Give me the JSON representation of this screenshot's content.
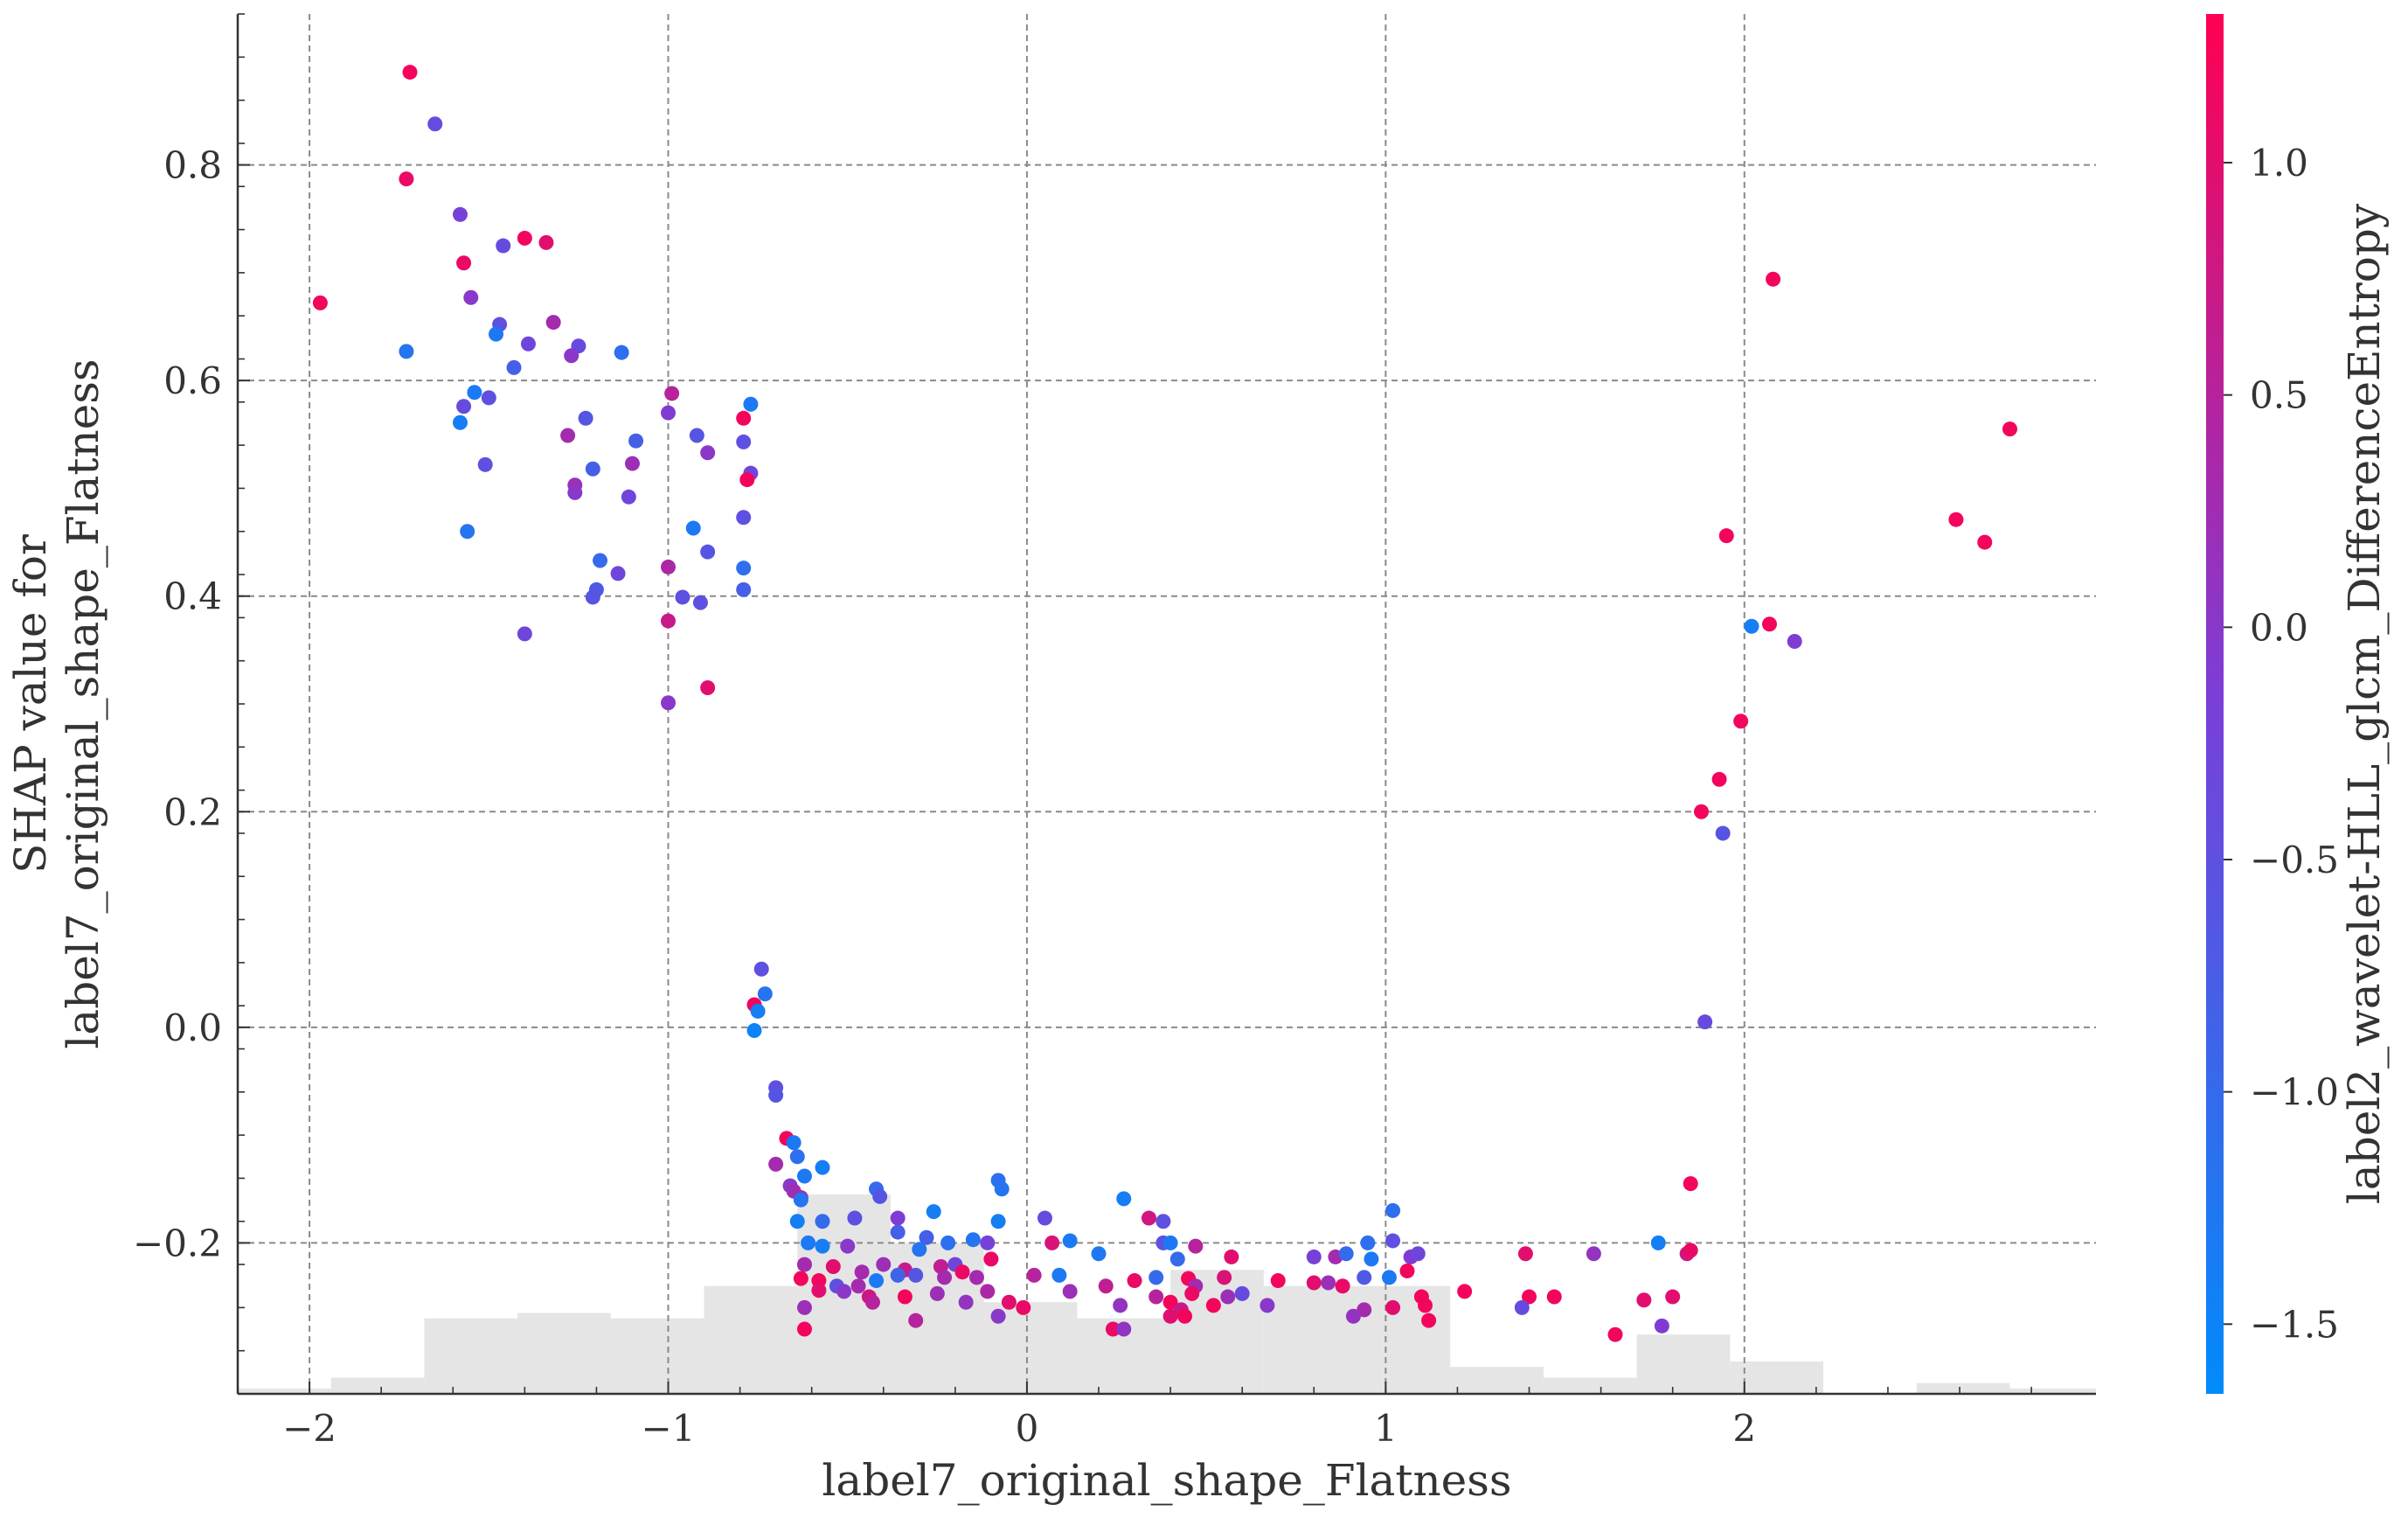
{
  "chart_data": {
    "type": "scatter",
    "xlabel": "label7_original_shape_Flatness",
    "ylabel_lines": [
      "SHAP value for",
      "label7_original_shape_Flatness"
    ],
    "colorbar_label": "label2_wavelet-HLL_glcm_DifferenceEntropy",
    "xlim": [
      -2.2,
      2.98
    ],
    "ylim": [
      -0.34,
      0.94
    ],
    "x_ticks": [
      -2,
      -1,
      0,
      1,
      2
    ],
    "x_tick_labels": [
      "−2",
      "−1",
      "0",
      "1",
      "2"
    ],
    "y_ticks": [
      -0.2,
      0.0,
      0.2,
      0.4,
      0.6,
      0.8
    ],
    "y_tick_labels": [
      "−0.2",
      "0.0",
      "0.2",
      "0.4",
      "0.6",
      "0.8"
    ],
    "colorbar_range": [
      -1.65,
      1.32
    ],
    "colorbar_ticks": [
      -1.5,
      -1.0,
      -0.5,
      0.0,
      0.5,
      1.0
    ],
    "colorbar_tick_labels": [
      "−1.5",
      "−1.0",
      "−0.5",
      "0.0",
      "0.5",
      "1.0"
    ],
    "colormap": [
      "#008bfb",
      "#7a3fd8",
      "#ff0052"
    ],
    "grid": true,
    "histogram": {
      "color": "#e5e5e5",
      "bins": [
        {
          "x0": -2.2,
          "x1": -1.94,
          "h": 0.005
        },
        {
          "x0": -1.94,
          "x1": -1.68,
          "h": 0.015
        },
        {
          "x0": -1.68,
          "x1": -1.42,
          "h": 0.07
        },
        {
          "x0": -1.42,
          "x1": -1.16,
          "h": 0.075
        },
        {
          "x0": -1.16,
          "x1": -0.9,
          "h": 0.07
        },
        {
          "x0": -0.9,
          "x1": -0.64,
          "h": 0.1
        },
        {
          "x0": -0.64,
          "x1": -0.38,
          "h": 0.185
        },
        {
          "x0": -0.38,
          "x1": -0.12,
          "h": 0.14
        },
        {
          "x0": -0.12,
          "x1": 0.14,
          "h": 0.085
        },
        {
          "x0": 0.14,
          "x1": 0.4,
          "h": 0.07
        },
        {
          "x0": 0.4,
          "x1": 0.66,
          "h": 0.115
        },
        {
          "x0": 0.66,
          "x1": 0.92,
          "h": 0.1
        },
        {
          "x0": 0.92,
          "x1": 1.18,
          "h": 0.1
        },
        {
          "x0": 1.18,
          "x1": 1.44,
          "h": 0.025
        },
        {
          "x0": 1.44,
          "x1": 1.7,
          "h": 0.015
        },
        {
          "x0": 1.7,
          "x1": 1.96,
          "h": 0.055
        },
        {
          "x0": 1.96,
          "x1": 2.22,
          "h": 0.03
        },
        {
          "x0": 2.22,
          "x1": 2.48,
          "h": 0.0
        },
        {
          "x0": 2.48,
          "x1": 2.74,
          "h": 0.01
        },
        {
          "x0": 2.74,
          "x1": 2.98,
          "h": 0.005
        }
      ]
    },
    "points": [
      {
        "x": -1.97,
        "y": 0.672,
        "c": 1.2
      },
      {
        "x": -1.72,
        "y": 0.886,
        "c": 1.2
      },
      {
        "x": -1.73,
        "y": 0.787,
        "c": 1.1
      },
      {
        "x": -1.65,
        "y": 0.838,
        "c": -0.4
      },
      {
        "x": -1.73,
        "y": 0.627,
        "c": -1.2
      },
      {
        "x": -1.58,
        "y": 0.754,
        "c": -0.2
      },
      {
        "x": -1.57,
        "y": 0.709,
        "c": 1.1
      },
      {
        "x": -1.55,
        "y": 0.677,
        "c": 0.0
      },
      {
        "x": -1.46,
        "y": 0.725,
        "c": -0.4
      },
      {
        "x": -1.4,
        "y": 0.732,
        "c": 1.2
      },
      {
        "x": -1.34,
        "y": 0.728,
        "c": 1.0
      },
      {
        "x": -1.32,
        "y": 0.654,
        "c": 0.3
      },
      {
        "x": -1.47,
        "y": 0.652,
        "c": -0.5
      },
      {
        "x": -1.48,
        "y": 0.643,
        "c": -1.3
      },
      {
        "x": -1.39,
        "y": 0.634,
        "c": -0.3
      },
      {
        "x": -1.25,
        "y": 0.632,
        "c": -0.4
      },
      {
        "x": -1.27,
        "y": 0.623,
        "c": 0.0
      },
      {
        "x": -1.13,
        "y": 0.626,
        "c": -1.1
      },
      {
        "x": -1.43,
        "y": 0.612,
        "c": -0.8
      },
      {
        "x": -1.54,
        "y": 0.589,
        "c": -1.3
      },
      {
        "x": -1.5,
        "y": 0.584,
        "c": -0.5
      },
      {
        "x": -1.57,
        "y": 0.576,
        "c": -0.4
      },
      {
        "x": -1.58,
        "y": 0.561,
        "c": -1.4
      },
      {
        "x": -1.51,
        "y": 0.522,
        "c": -0.5
      },
      {
        "x": -1.56,
        "y": 0.46,
        "c": -1.2
      },
      {
        "x": -1.23,
        "y": 0.565,
        "c": -0.6
      },
      {
        "x": -1.28,
        "y": 0.549,
        "c": 0.3
      },
      {
        "x": -1.09,
        "y": 0.544,
        "c": -0.8
      },
      {
        "x": -1.1,
        "y": 0.523,
        "c": 0.2
      },
      {
        "x": -1.21,
        "y": 0.518,
        "c": -0.8
      },
      {
        "x": -1.26,
        "y": 0.503,
        "c": 0.2
      },
      {
        "x": -1.26,
        "y": 0.496,
        "c": 0.0
      },
      {
        "x": -1.11,
        "y": 0.492,
        "c": -0.3
      },
      {
        "x": -1.19,
        "y": 0.433,
        "c": -1.0
      },
      {
        "x": -1.14,
        "y": 0.421,
        "c": -0.3
      },
      {
        "x": -1.2,
        "y": 0.406,
        "c": -0.7
      },
      {
        "x": -1.21,
        "y": 0.399,
        "c": -0.6
      },
      {
        "x": -1.4,
        "y": 0.365,
        "c": -0.3
      },
      {
        "x": -0.99,
        "y": 0.588,
        "c": 0.5
      },
      {
        "x": -1.0,
        "y": 0.57,
        "c": -0.1
      },
      {
        "x": -0.92,
        "y": 0.549,
        "c": -0.6
      },
      {
        "x": -0.89,
        "y": 0.533,
        "c": 0.0
      },
      {
        "x": -0.79,
        "y": 0.565,
        "c": 1.2
      },
      {
        "x": -0.77,
        "y": 0.578,
        "c": -1.3
      },
      {
        "x": -0.79,
        "y": 0.543,
        "c": -0.5
      },
      {
        "x": -0.77,
        "y": 0.514,
        "c": -0.3
      },
      {
        "x": -0.78,
        "y": 0.508,
        "c": 1.2
      },
      {
        "x": -0.79,
        "y": 0.473,
        "c": -0.5
      },
      {
        "x": -0.93,
        "y": 0.463,
        "c": -1.3
      },
      {
        "x": -0.89,
        "y": 0.441,
        "c": -0.6
      },
      {
        "x": -1.0,
        "y": 0.427,
        "c": 0.4
      },
      {
        "x": -0.79,
        "y": 0.426,
        "c": -1.1
      },
      {
        "x": -0.79,
        "y": 0.406,
        "c": -0.8
      },
      {
        "x": -0.96,
        "y": 0.399,
        "c": -0.5
      },
      {
        "x": -0.91,
        "y": 0.394,
        "c": -0.5
      },
      {
        "x": -1.0,
        "y": 0.377,
        "c": 0.7
      },
      {
        "x": -0.89,
        "y": 0.315,
        "c": 1.0
      },
      {
        "x": -1.0,
        "y": 0.301,
        "c": 0.0
      },
      {
        "x": -0.74,
        "y": 0.054,
        "c": -0.5
      },
      {
        "x": -0.73,
        "y": 0.031,
        "c": -1.2
      },
      {
        "x": -0.76,
        "y": 0.021,
        "c": 1.2
      },
      {
        "x": -0.75,
        "y": 0.015,
        "c": -1.4
      },
      {
        "x": -0.76,
        "y": -0.003,
        "c": -1.5
      },
      {
        "x": -0.7,
        "y": -0.056,
        "c": -0.5
      },
      {
        "x": -0.7,
        "y": -0.063,
        "c": -0.6
      },
      {
        "x": -0.67,
        "y": -0.103,
        "c": 1.2
      },
      {
        "x": -0.65,
        "y": -0.107,
        "c": -1.3
      },
      {
        "x": -0.64,
        "y": -0.12,
        "c": -1.1
      },
      {
        "x": -0.7,
        "y": -0.127,
        "c": 0.3
      },
      {
        "x": -0.57,
        "y": -0.13,
        "c": -1.4
      },
      {
        "x": -0.62,
        "y": -0.138,
        "c": -1.3
      },
      {
        "x": -0.66,
        "y": -0.147,
        "c": 0.0
      },
      {
        "x": -0.65,
        "y": -0.152,
        "c": 0.2
      },
      {
        "x": -0.63,
        "y": -0.158,
        "c": 0.4
      },
      {
        "x": -0.63,
        "y": -0.16,
        "c": -1.2
      },
      {
        "x": -0.42,
        "y": -0.15,
        "c": -1.0
      },
      {
        "x": -0.41,
        "y": -0.157,
        "c": -0.6
      },
      {
        "x": -0.08,
        "y": -0.142,
        "c": -1.1
      },
      {
        "x": -0.07,
        "y": -0.15,
        "c": -1.2
      },
      {
        "x": 0.27,
        "y": -0.159,
        "c": -1.4
      },
      {
        "x": -0.64,
        "y": -0.18,
        "c": -1.4
      },
      {
        "x": -0.57,
        "y": -0.18,
        "c": -1.0
      },
      {
        "x": -0.48,
        "y": -0.177,
        "c": -0.5
      },
      {
        "x": -0.36,
        "y": -0.177,
        "c": -0.1
      },
      {
        "x": -0.26,
        "y": -0.171,
        "c": -1.4
      },
      {
        "x": -0.08,
        "y": -0.18,
        "c": -1.4
      },
      {
        "x": 0.05,
        "y": -0.177,
        "c": -0.4
      },
      {
        "x": 0.34,
        "y": -0.177,
        "c": 0.8
      },
      {
        "x": 0.38,
        "y": -0.18,
        "c": -0.5
      },
      {
        "x": 1.02,
        "y": -0.17,
        "c": -1.1
      },
      {
        "x": -0.61,
        "y": -0.2,
        "c": -1.3
      },
      {
        "x": -0.57,
        "y": -0.203,
        "c": -1.4
      },
      {
        "x": -0.5,
        "y": -0.203,
        "c": 0.0
      },
      {
        "x": -0.36,
        "y": -0.19,
        "c": -0.8
      },
      {
        "x": -0.28,
        "y": -0.195,
        "c": -0.8
      },
      {
        "x": -0.3,
        "y": -0.206,
        "c": -1.2
      },
      {
        "x": -0.22,
        "y": -0.2,
        "c": -1.1
      },
      {
        "x": -0.15,
        "y": -0.197,
        "c": -1.2
      },
      {
        "x": -0.11,
        "y": -0.2,
        "c": -0.2
      },
      {
        "x": 0.07,
        "y": -0.2,
        "c": 0.9
      },
      {
        "x": 0.12,
        "y": -0.198,
        "c": -1.3
      },
      {
        "x": 0.38,
        "y": -0.2,
        "c": -0.5
      },
      {
        "x": 0.4,
        "y": -0.2,
        "c": -1.3
      },
      {
        "x": 0.47,
        "y": -0.203,
        "c": 0.5
      },
      {
        "x": 0.95,
        "y": -0.2,
        "c": -1.1
      },
      {
        "x": 1.02,
        "y": -0.198,
        "c": -0.5
      },
      {
        "x": 1.76,
        "y": -0.2,
        "c": -1.4
      },
      {
        "x": -0.62,
        "y": -0.22,
        "c": 0.3
      },
      {
        "x": -0.54,
        "y": -0.222,
        "c": 1.0
      },
      {
        "x": -0.46,
        "y": -0.227,
        "c": 0.3
      },
      {
        "x": -0.4,
        "y": -0.22,
        "c": 0.2
      },
      {
        "x": -0.34,
        "y": -0.225,
        "c": 0.7
      },
      {
        "x": -0.24,
        "y": -0.222,
        "c": 0.6
      },
      {
        "x": -0.2,
        "y": -0.22,
        "c": -0.3
      },
      {
        "x": -0.1,
        "y": -0.215,
        "c": 1.1
      },
      {
        "x": 0.2,
        "y": -0.21,
        "c": -1.3
      },
      {
        "x": 0.42,
        "y": -0.215,
        "c": -1.0
      },
      {
        "x": 0.57,
        "y": -0.213,
        "c": 1.0
      },
      {
        "x": 0.8,
        "y": -0.213,
        "c": -0.2
      },
      {
        "x": 0.86,
        "y": -0.213,
        "c": 0.3
      },
      {
        "x": 0.89,
        "y": -0.21,
        "c": -1.0
      },
      {
        "x": 0.96,
        "y": -0.215,
        "c": -1.3
      },
      {
        "x": 1.07,
        "y": -0.213,
        "c": -0.1
      },
      {
        "x": 1.09,
        "y": -0.21,
        "c": -0.3
      },
      {
        "x": 1.39,
        "y": -0.21,
        "c": 1.0
      },
      {
        "x": 1.58,
        "y": -0.21,
        "c": 0.1
      },
      {
        "x": 1.84,
        "y": -0.21,
        "c": 0.8
      },
      {
        "x": 1.85,
        "y": -0.207,
        "c": 1.1
      },
      {
        "x": -0.63,
        "y": -0.233,
        "c": 1.2
      },
      {
        "x": -0.58,
        "y": -0.235,
        "c": 1.2
      },
      {
        "x": -0.53,
        "y": -0.24,
        "c": -0.5
      },
      {
        "x": -0.47,
        "y": -0.24,
        "c": 0.3
      },
      {
        "x": -0.42,
        "y": -0.235,
        "c": -1.3
      },
      {
        "x": -0.36,
        "y": -0.23,
        "c": -0.9
      },
      {
        "x": -0.31,
        "y": -0.23,
        "c": -0.6
      },
      {
        "x": -0.23,
        "y": -0.232,
        "c": 0.3
      },
      {
        "x": -0.18,
        "y": -0.227,
        "c": 1.1
      },
      {
        "x": -0.14,
        "y": -0.232,
        "c": 0.3
      },
      {
        "x": 0.02,
        "y": -0.23,
        "c": 0.5
      },
      {
        "x": 0.09,
        "y": -0.23,
        "c": -1.3
      },
      {
        "x": 0.22,
        "y": -0.24,
        "c": 0.6
      },
      {
        "x": 0.3,
        "y": -0.235,
        "c": 1.1
      },
      {
        "x": 0.36,
        "y": -0.232,
        "c": -1.0
      },
      {
        "x": 0.45,
        "y": -0.233,
        "c": 1.2
      },
      {
        "x": 0.47,
        "y": -0.24,
        "c": 0.3
      },
      {
        "x": 0.55,
        "y": -0.232,
        "c": 0.9
      },
      {
        "x": 0.7,
        "y": -0.235,
        "c": 1.2
      },
      {
        "x": 0.8,
        "y": -0.237,
        "c": 1.0
      },
      {
        "x": 0.84,
        "y": -0.237,
        "c": 0.2
      },
      {
        "x": 0.94,
        "y": -0.232,
        "c": -0.7
      },
      {
        "x": 1.01,
        "y": -0.232,
        "c": -1.3
      },
      {
        "x": 1.06,
        "y": -0.226,
        "c": 1.2
      },
      {
        "x": 1.22,
        "y": -0.245,
        "c": 1.2
      },
      {
        "x": -0.58,
        "y": -0.244,
        "c": 1.0
      },
      {
        "x": -0.51,
        "y": -0.245,
        "c": 0.0
      },
      {
        "x": -0.44,
        "y": -0.25,
        "c": 0.8
      },
      {
        "x": -0.34,
        "y": -0.25,
        "c": 1.2
      },
      {
        "x": -0.25,
        "y": -0.247,
        "c": 0.2
      },
      {
        "x": -0.11,
        "y": -0.245,
        "c": 0.4
      },
      {
        "x": 0.12,
        "y": -0.245,
        "c": 0.2
      },
      {
        "x": 0.36,
        "y": -0.25,
        "c": 0.5
      },
      {
        "x": 0.46,
        "y": -0.247,
        "c": 1.1
      },
      {
        "x": 0.56,
        "y": -0.25,
        "c": 0.2
      },
      {
        "x": 0.6,
        "y": -0.247,
        "c": -0.4
      },
      {
        "x": 0.88,
        "y": -0.24,
        "c": 1.1
      },
      {
        "x": 1.1,
        "y": -0.25,
        "c": 1.2
      },
      {
        "x": 1.4,
        "y": -0.25,
        "c": 1.2
      },
      {
        "x": 1.47,
        "y": -0.25,
        "c": 1.2
      },
      {
        "x": 1.72,
        "y": -0.253,
        "c": 1.0
      },
      {
        "x": 1.8,
        "y": -0.25,
        "c": 1.0
      },
      {
        "x": -0.62,
        "y": -0.26,
        "c": 0.2
      },
      {
        "x": -0.43,
        "y": -0.255,
        "c": 0.5
      },
      {
        "x": -0.17,
        "y": -0.255,
        "c": 0.1
      },
      {
        "x": -0.05,
        "y": -0.255,
        "c": 1.0
      },
      {
        "x": -0.01,
        "y": -0.26,
        "c": 1.1
      },
      {
        "x": 0.26,
        "y": -0.258,
        "c": 0.1
      },
      {
        "x": 0.4,
        "y": -0.255,
        "c": 1.2
      },
      {
        "x": 0.43,
        "y": -0.262,
        "c": 0.7
      },
      {
        "x": 0.52,
        "y": -0.258,
        "c": 1.2
      },
      {
        "x": 0.67,
        "y": -0.258,
        "c": 0.0
      },
      {
        "x": 0.94,
        "y": -0.262,
        "c": 0.3
      },
      {
        "x": 1.02,
        "y": -0.26,
        "c": 1.0
      },
      {
        "x": 1.11,
        "y": -0.258,
        "c": 1.2
      },
      {
        "x": 1.38,
        "y": -0.26,
        "c": -0.4
      },
      {
        "x": -0.31,
        "y": -0.272,
        "c": 0.5
      },
      {
        "x": -0.08,
        "y": -0.268,
        "c": 0.0
      },
      {
        "x": 0.4,
        "y": -0.268,
        "c": 1.0
      },
      {
        "x": 0.44,
        "y": -0.268,
        "c": 1.2
      },
      {
        "x": 0.91,
        "y": -0.268,
        "c": 0.1
      },
      {
        "x": 1.12,
        "y": -0.272,
        "c": 1.2
      },
      {
        "x": -0.62,
        "y": -0.28,
        "c": 1.2
      },
      {
        "x": 0.24,
        "y": -0.28,
        "c": 1.1
      },
      {
        "x": 0.27,
        "y": -0.28,
        "c": 0.1
      },
      {
        "x": 1.64,
        "y": -0.285,
        "c": 1.2
      },
      {
        "x": 1.77,
        "y": -0.277,
        "c": -0.1
      },
      {
        "x": 1.85,
        "y": -0.145,
        "c": 1.2
      },
      {
        "x": 1.89,
        "y": 0.005,
        "c": -0.4
      },
      {
        "x": 1.94,
        "y": 0.18,
        "c": -0.6
      },
      {
        "x": 1.88,
        "y": 0.2,
        "c": 1.2
      },
      {
        "x": 1.93,
        "y": 0.23,
        "c": 1.2
      },
      {
        "x": 1.99,
        "y": 0.284,
        "c": 1.2
      },
      {
        "x": 2.14,
        "y": 0.358,
        "c": -0.1
      },
      {
        "x": 2.02,
        "y": 0.372,
        "c": -1.4
      },
      {
        "x": 2.07,
        "y": 0.374,
        "c": 1.2
      },
      {
        "x": 1.95,
        "y": 0.456,
        "c": 1.2
      },
      {
        "x": 2.08,
        "y": 0.694,
        "c": 1.2
      },
      {
        "x": 2.59,
        "y": 0.471,
        "c": 1.2
      },
      {
        "x": 2.67,
        "y": 0.45,
        "c": 1.2
      },
      {
        "x": 2.74,
        "y": 0.555,
        "c": 1.2
      }
    ]
  }
}
